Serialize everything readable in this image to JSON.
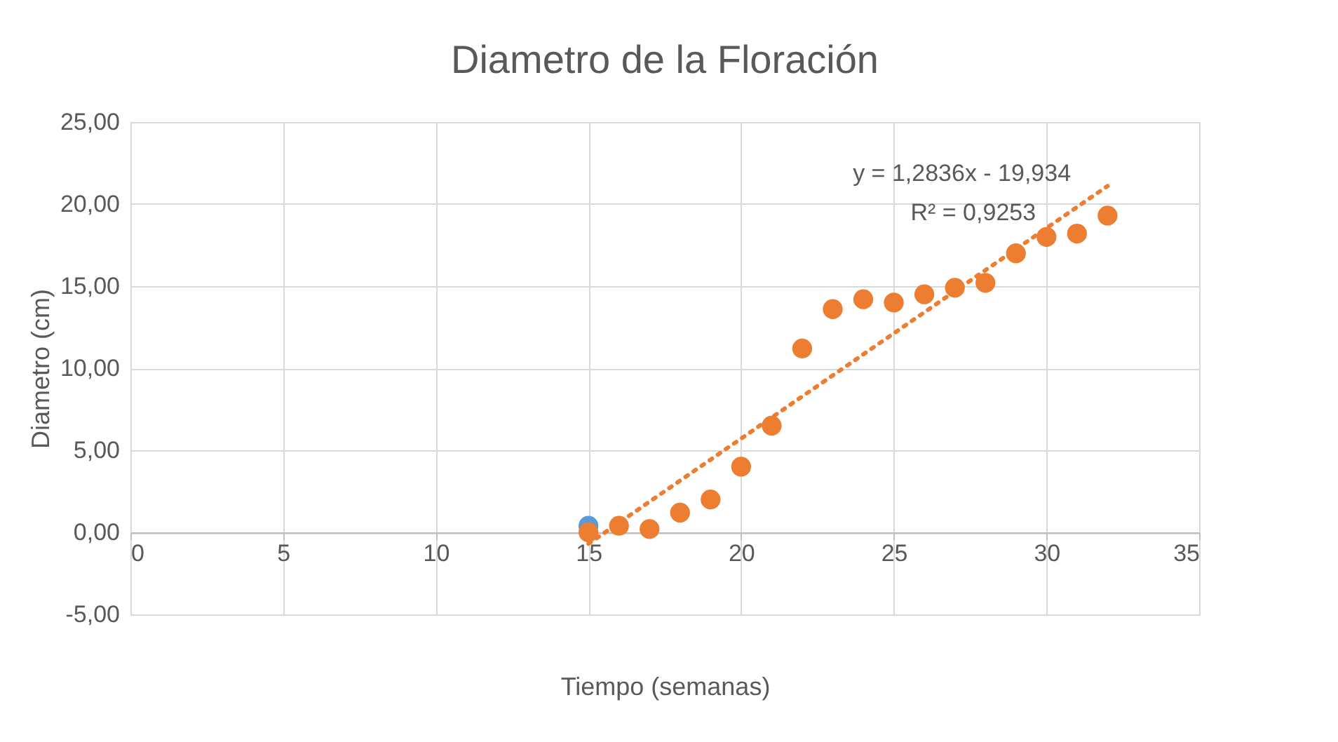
{
  "chart_data": {
    "type": "scatter",
    "title": "Diametro de la Floración",
    "xlabel": "Tiempo (semanas)",
    "ylabel": "Diametro (cm)",
    "series": [
      {
        "color": "#5b9bd5",
        "x": [
          15
        ],
        "values": [
          0.4
        ]
      },
      {
        "color": "#ed7d31",
        "x": [
          15,
          16,
          17,
          18,
          19,
          20,
          21,
          22,
          23,
          24,
          25,
          26,
          27,
          28,
          29,
          30,
          31,
          32
        ],
        "values": [
          0.0,
          0.4,
          0.2,
          1.2,
          2.0,
          4.0,
          6.5,
          11.2,
          13.6,
          14.2,
          14.0,
          14.5,
          14.9,
          15.2,
          17.0,
          18.0,
          18.2,
          19.3
        ]
      },
      {
        "type": "line",
        "color": "#ed7d31",
        "line_style": "dotted",
        "marker": "none",
        "x": [
          15,
          32
        ],
        "values": [
          -0.7,
          21.1
        ]
      }
    ],
    "xlim": [
      0,
      35
    ],
    "xticks": [
      0,
      5,
      10,
      15,
      20,
      25,
      30,
      35
    ],
    "ylim": [
      -5,
      25
    ],
    "yticks": [
      {
        "value": -5,
        "label": "-5,00"
      },
      {
        "value": 0,
        "label": "0,00"
      },
      {
        "value": 5,
        "label": "5,00"
      },
      {
        "value": 10,
        "label": "10,00"
      },
      {
        "value": 15,
        "label": "15,00"
      },
      {
        "value": 20,
        "label": "20,00"
      },
      {
        "value": 25,
        "label": "25,00"
      }
    ],
    "annotations": [
      "y = 1,2836x - 19,934",
      "R² = 0,9253"
    ],
    "grid": true,
    "marker": "circle"
  }
}
